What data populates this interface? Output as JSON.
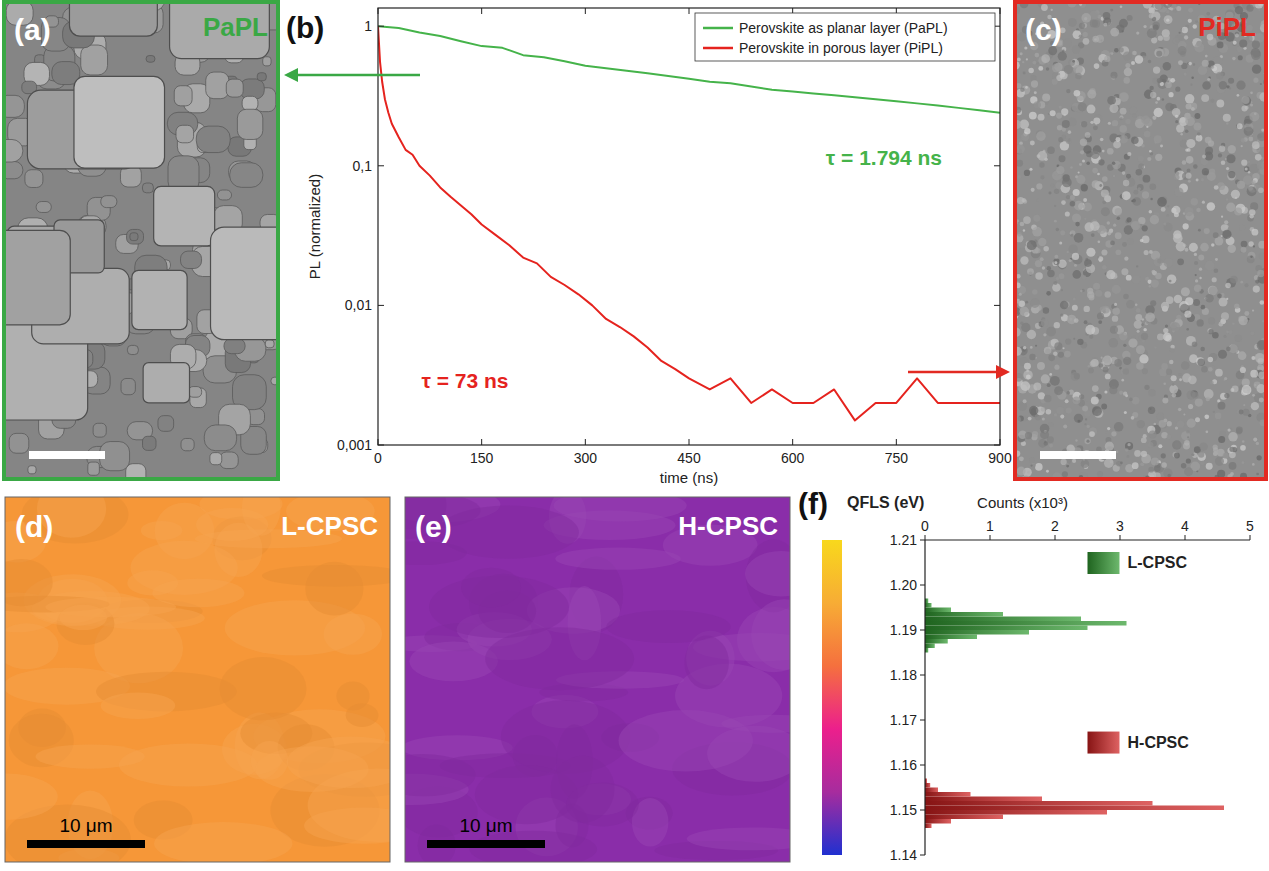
{
  "chart_data": [
    {
      "type": "image",
      "panel": "(a)",
      "title": "PaPL",
      "color": "#3aa845"
    },
    {
      "type": "line",
      "panel": "(b)",
      "xlabel": "time (ns)",
      "ylabel": "PL (normalized)",
      "log": "y",
      "xlim": [
        0,
        900
      ],
      "ylim": [
        0.001,
        1.35
      ],
      "xticks": [
        0,
        150,
        300,
        450,
        600,
        750,
        900
      ],
      "yticks": [
        {
          "value": 0.001,
          "label": "0,001"
        },
        {
          "value": 0.01,
          "label": "0,01"
        },
        {
          "value": 0.1,
          "label": "0,1"
        },
        1
      ],
      "legend": "top-right",
      "annotations": [
        "τ = 1.794 ns",
        "τ = 73 ns"
      ],
      "series": [
        {
          "name": "Perovskite as planar layer (PaPL)",
          "color": "#45b34a",
          "x": [
            0,
            30,
            60,
            90,
            120,
            150,
            180,
            210,
            240,
            270,
            300,
            330,
            360,
            390,
            420,
            450,
            480,
            510,
            540,
            570,
            600,
            630,
            660,
            690,
            720,
            750,
            780,
            810,
            840,
            870,
            900
          ],
          "values": [
            1,
            0.97,
            0.9,
            0.85,
            0.78,
            0.72,
            0.7,
            0.62,
            0.6,
            0.56,
            0.52,
            0.5,
            0.48,
            0.46,
            0.44,
            0.42,
            0.4,
            0.39,
            0.37,
            0.35,
            0.34,
            0.33,
            0.32,
            0.31,
            0.3,
            0.29,
            0.28,
            0.27,
            0.26,
            0.25,
            0.24
          ]
        },
        {
          "name": "Perovskite in porous layer (PiPL)",
          "color": "#e5231e",
          "x": [
            0,
            3,
            6,
            10,
            15,
            20,
            30,
            40,
            50,
            60,
            75,
            90,
            105,
            120,
            135,
            150,
            170,
            190,
            210,
            230,
            250,
            270,
            290,
            310,
            330,
            350,
            370,
            390,
            410,
            430,
            450,
            480,
            510,
            540,
            570,
            600,
            630,
            660,
            690,
            720,
            750,
            780,
            810,
            840,
            870,
            900
          ],
          "values": [
            1,
            0.55,
            0.4,
            0.3,
            0.24,
            0.2,
            0.16,
            0.13,
            0.12,
            0.1,
            0.085,
            0.07,
            0.06,
            0.052,
            0.045,
            0.038,
            0.032,
            0.027,
            0.022,
            0.02,
            0.016,
            0.014,
            0.012,
            0.01,
            0.008,
            0.007,
            0.006,
            0.005,
            0.004,
            0.0035,
            0.003,
            0.0025,
            0.003,
            0.002,
            0.0025,
            0.002,
            0.002,
            0.0025,
            0.0015,
            0.002,
            0.002,
            0.003,
            0.002,
            0.002,
            0.002,
            0.002
          ]
        }
      ]
    },
    {
      "type": "image",
      "panel": "(c)",
      "title": "PiPL",
      "color": "#e22a22"
    },
    {
      "type": "heatmap",
      "panel": "(d)",
      "title": "L-CPSC",
      "scale_bar": "10 μm",
      "values": [
        1.191
      ]
    },
    {
      "type": "heatmap",
      "panel": "(e)",
      "title": "H-CPSC",
      "scale_bar": "10 μm",
      "values": [
        1.151
      ]
    },
    {
      "type": "histogram",
      "panel": "(f)",
      "orientation": "horizontal",
      "ylabel": "QFLS (eV)",
      "xlabel": "Counts (x10³)",
      "xlim": [
        0,
        5
      ],
      "xticks": [
        0,
        1,
        2,
        3,
        4,
        5
      ],
      "ylim": [
        1.14,
        1.21
      ],
      "yticks": [
        1.14,
        1.15,
        1.16,
        1.17,
        1.18,
        1.19,
        {
          "value": 1.2,
          "label": "1.20"
        },
        1.21
      ],
      "legend": "top-right",
      "colorbar": {
        "range": [
          1.14,
          1.21
        ],
        "colors": [
          "#2030d0",
          "#a72c9e",
          "#ec1f8c",
          "#f5703e",
          "#f7ac35",
          "#f8d81c"
        ]
      },
      "series": [
        {
          "name": "L-CPSC",
          "color": "#2f9a2f",
          "bins": [
            1.185,
            1.186,
            1.187,
            1.188,
            1.189,
            1.19,
            1.191,
            1.192,
            1.193,
            1.194,
            1.195,
            1.196,
            1.197
          ],
          "values": [
            0.05,
            0.15,
            0.35,
            0.8,
            1.6,
            2.5,
            3.1,
            2.4,
            1.2,
            0.4,
            0.1,
            0.05
          ]
        },
        {
          "name": "H-CPSC",
          "color": "#d01e1e",
          "bins": [
            1.146,
            1.147,
            1.148,
            1.149,
            1.15,
            1.151,
            1.152,
            1.153,
            1.154,
            1.155,
            1.156,
            1.157
          ],
          "values": [
            0.1,
            0.4,
            1.2,
            2.8,
            4.6,
            3.5,
            1.8,
            0.7,
            0.2,
            0.08,
            0.03
          ]
        }
      ]
    }
  ]
}
